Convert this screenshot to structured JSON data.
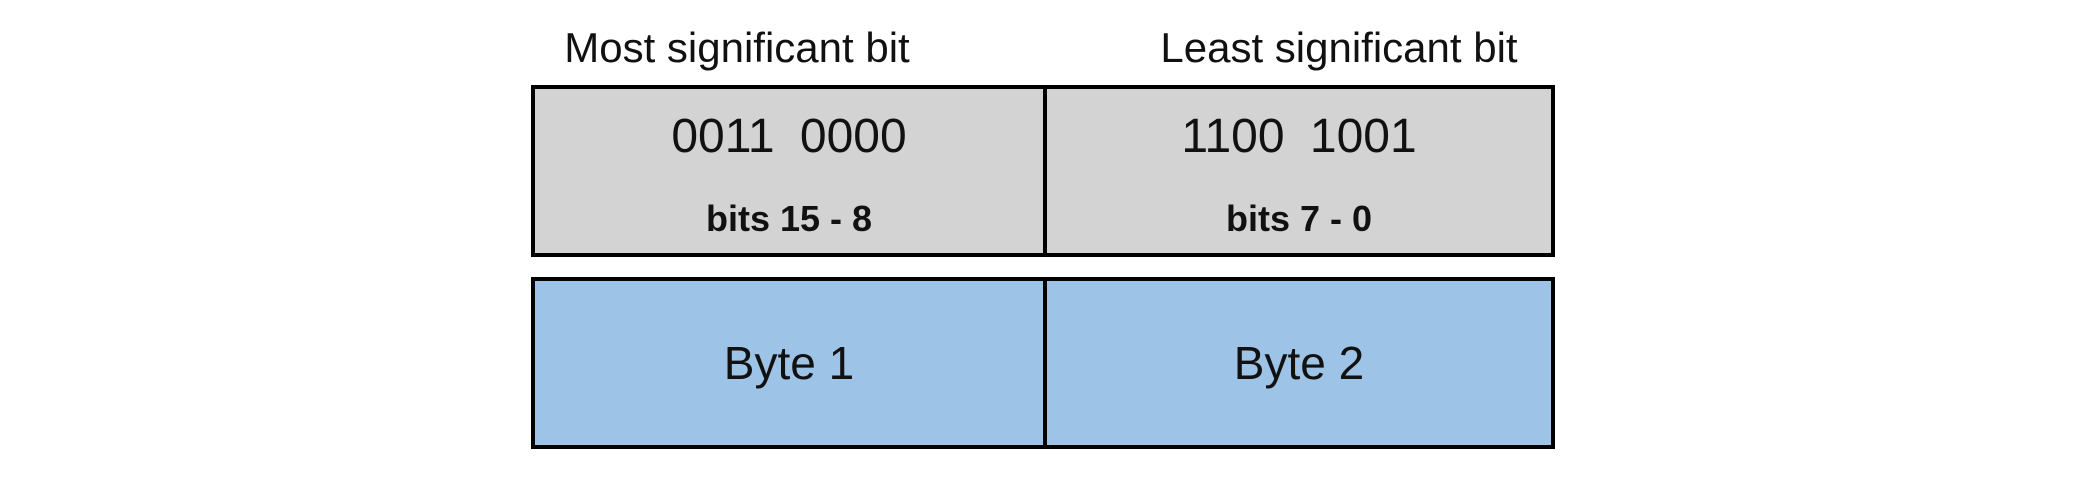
{
  "colors": {
    "gray_fill": "#d3d3d3",
    "blue_fill": "#9dc3e6",
    "border": "#000000",
    "text": "#111111"
  },
  "labels": {
    "msb": "Most significant bit",
    "lsb": "Least significant bit"
  },
  "word": {
    "high_byte": {
      "binary": "0011 0000",
      "bits_label": "bits 15 - 8",
      "byte_label": "Byte 1"
    },
    "low_byte": {
      "binary": "1100 1001",
      "bits_label": "bits 7 - 0",
      "byte_label": "Byte 2"
    }
  }
}
